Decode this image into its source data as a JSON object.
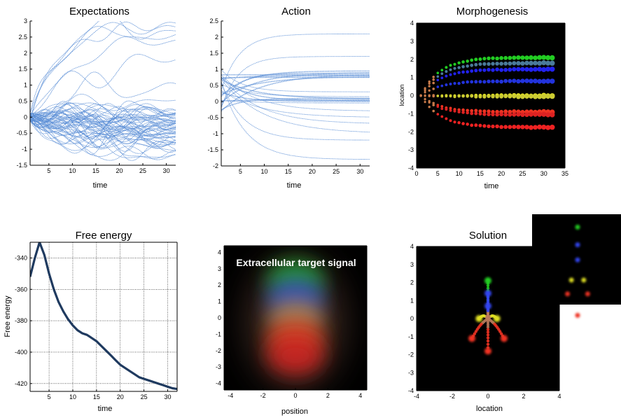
{
  "chart_data": [
    {
      "type": "line",
      "title": "Expectations",
      "xlabel": "time",
      "ylabel": "",
      "xlim": [
        1,
        32
      ],
      "ylim": [
        -1.5,
        3
      ],
      "xticks": [
        5,
        10,
        15,
        20,
        25,
        30
      ],
      "yticks": [
        -1.5,
        -1,
        -0.5,
        0,
        0.5,
        1,
        1.5,
        2,
        2.5,
        3
      ],
      "line_color": "#5b8ed6",
      "series_count": 64,
      "series_start": 0,
      "series_final": [
        2.9,
        2.85,
        2.75,
        2.6,
        2.4,
        1.8,
        1.0,
        0.5,
        0.2,
        0.1,
        0.0,
        -0.1,
        -0.2,
        -0.3,
        -0.4,
        -0.5,
        -0.6,
        -0.7,
        -0.8,
        -0.9,
        -1.0,
        -1.1,
        -1.2,
        0.15,
        -0.15,
        -0.35,
        -0.45,
        -0.55,
        -0.65,
        -0.75,
        -0.25,
        0.05
      ]
    },
    {
      "type": "line",
      "title": "Action",
      "xlabel": "time",
      "ylabel": "",
      "xlim": [
        1,
        32
      ],
      "ylim": [
        -2,
        2.5
      ],
      "xticks": [
        5,
        10,
        15,
        20,
        25,
        30
      ],
      "yticks": [
        -2,
        -1.5,
        -1,
        -0.5,
        0,
        0.5,
        1,
        1.5,
        2,
        2.5
      ],
      "line_color": "#5b8ed6",
      "series_start_range": [
        -0.3,
        1.0
      ],
      "series_final": [
        2.1,
        1.4,
        0.95,
        0.9,
        0.88,
        0.85,
        0.83,
        0.8,
        0.78,
        0.75,
        0.3,
        0.15,
        0.1,
        0.08,
        0.05,
        0.03,
        0.0,
        -0.05,
        -0.3,
        -0.5,
        -0.7,
        -1.0,
        -1.2,
        -1.8
      ]
    },
    {
      "type": "scatter",
      "title": "Morphogenesis",
      "xlabel": "time",
      "ylabel": "location",
      "xlim": [
        0,
        35
      ],
      "ylim": [
        -4,
        4
      ],
      "xticks": [
        0,
        5,
        10,
        15,
        20,
        25,
        30,
        35
      ],
      "yticks": [
        -4,
        -3,
        -2,
        -1,
        0,
        1,
        2,
        3,
        4
      ],
      "background": "#000000",
      "series": [
        {
          "color": "#22cc22",
          "final": 2.1
        },
        {
          "color": "#4a7a9a",
          "final": 1.8
        },
        {
          "color": "#2222ee",
          "final": 1.45
        },
        {
          "color": "#2233dd",
          "final": 0.8
        },
        {
          "color": "#dddd22",
          "final": 0.0
        },
        {
          "color": "#cccc33",
          "final": -0.05
        },
        {
          "color": "#ee3322",
          "final": -0.9
        },
        {
          "color": "#dd2222",
          "final": -1.05
        },
        {
          "color": "#ee2222",
          "final": -1.75
        }
      ]
    },
    {
      "type": "line",
      "title": "Free energy",
      "xlabel": "time",
      "ylabel": "Free energy",
      "xlim": [
        1,
        32
      ],
      "ylim": [
        -425,
        -330
      ],
      "xticks": [
        5,
        10,
        15,
        20,
        25,
        30
      ],
      "yticks": [
        -420,
        -400,
        -380,
        -360,
        -340
      ],
      "grid": true,
      "line_color": "#1f3a5f",
      "x": [
        1,
        2,
        3,
        4,
        5,
        6,
        7,
        8,
        9,
        10,
        11,
        12,
        13,
        14,
        15,
        16,
        17,
        18,
        19,
        20,
        21,
        22,
        23,
        24,
        25,
        26,
        27,
        28,
        29,
        30,
        31,
        32
      ],
      "y": [
        -352,
        -340,
        -330,
        -338,
        -350,
        -360,
        -368,
        -374,
        -379,
        -383,
        -386,
        -388,
        -389,
        -391,
        -393,
        -396,
        -399,
        -402,
        -405,
        -408,
        -410,
        -412,
        -414,
        -416,
        -417,
        -418,
        -419,
        -420,
        -421,
        -422,
        -423,
        -423.5
      ]
    },
    {
      "type": "heatmap",
      "title": "Extracellular target signal",
      "xlabel": "position",
      "ylabel": "",
      "xlim": [
        -4.4,
        4.4
      ],
      "ylim": [
        -4.4,
        4.4
      ],
      "xticks": [
        -4,
        -2,
        0,
        2,
        4
      ],
      "yticks": [
        -4,
        -3,
        -2,
        -1,
        0,
        1,
        2,
        3,
        4
      ],
      "background": "#000000",
      "blobs": [
        {
          "color": "#22aa33",
          "x": 0,
          "y": 2.3
        },
        {
          "color": "#3344cc",
          "x": 0,
          "y": 1.2
        },
        {
          "color": "#aa8855",
          "x": 0,
          "y": 0.0
        },
        {
          "color": "#dd4422",
          "x": 0,
          "y": -1.3
        },
        {
          "color": "#cc2222",
          "x": 0,
          "y": -2.3
        }
      ]
    },
    {
      "type": "scatter",
      "title": "Solution",
      "xlabel": "location",
      "ylabel": "",
      "xlim": [
        -4,
        4
      ],
      "ylim": [
        -4,
        4
      ],
      "xticks": [
        -4,
        -2,
        0,
        2,
        4
      ],
      "yticks": [
        -4,
        -3,
        -2,
        -1,
        0,
        1,
        2,
        3,
        4
      ],
      "background": "#000000",
      "points": [
        {
          "x": 0.0,
          "y": 2.1,
          "color": "#22cc22"
        },
        {
          "x": 0.0,
          "y": 1.4,
          "color": "#3344ee"
        },
        {
          "x": 0.0,
          "y": 0.7,
          "color": "#3344ee"
        },
        {
          "x": -0.5,
          "y": 0.0,
          "color": "#dddd22"
        },
        {
          "x": 0.5,
          "y": 0.0,
          "color": "#dddd22"
        },
        {
          "x": -0.9,
          "y": -1.1,
          "color": "#ee3322"
        },
        {
          "x": 0.9,
          "y": -1.1,
          "color": "#ee3322"
        },
        {
          "x": 0.0,
          "y": -1.8,
          "color": "#ee3322"
        }
      ],
      "inset_points": [
        {
          "x": 0.0,
          "y": 2.1,
          "color": "#22cc22"
        },
        {
          "x": 0.0,
          "y": 1.4,
          "color": "#3344ee"
        },
        {
          "x": 0.0,
          "y": 0.8,
          "color": "#3344ee"
        },
        {
          "x": -0.55,
          "y": 0.0,
          "color": "#dddd22"
        },
        {
          "x": 0.55,
          "y": 0.0,
          "color": "#dddd22"
        },
        {
          "x": -0.9,
          "y": -0.55,
          "color": "#ee3322"
        },
        {
          "x": 0.9,
          "y": -0.55,
          "color": "#ee3322"
        },
        {
          "x": 0.0,
          "y": -1.4,
          "color": "#ee3322"
        }
      ]
    }
  ]
}
